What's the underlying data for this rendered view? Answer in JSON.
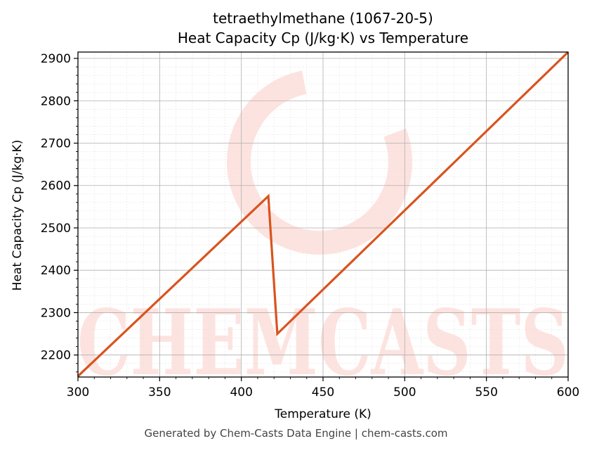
{
  "chart_data": {
    "type": "line",
    "title_line1": "tetraethylmethane (1067-20-5)",
    "title_line2": "Heat Capacity Cp (J/kg·K) vs Temperature",
    "xlabel": "Temperature (K)",
    "ylabel": "Heat Capacity Cp (J/kg·K)",
    "xlim": [
      300,
      600
    ],
    "ylim": [
      2148,
      2915
    ],
    "x_ticks": [
      "300",
      "350",
      "400",
      "450",
      "500",
      "550",
      "600"
    ],
    "x_tick_values": [
      300,
      350,
      400,
      450,
      500,
      550,
      600
    ],
    "y_ticks": [
      "2200",
      "2300",
      "2400",
      "2500",
      "2600",
      "2700",
      "2800",
      "2900"
    ],
    "y_tick_values": [
      2200,
      2300,
      2400,
      2500,
      2600,
      2700,
      2800,
      2900
    ],
    "grid": true,
    "line_color": "#d9531e",
    "series": [
      {
        "x": [
          300,
          416.5,
          422,
          600
        ],
        "y": [
          2150,
          2575,
          2250,
          2915
        ]
      }
    ],
    "watermark_text": "CHEMCASTS",
    "watermark_color": "#fde3df"
  },
  "footer": "Generated by Chem-Casts Data Engine | chem-casts.com"
}
